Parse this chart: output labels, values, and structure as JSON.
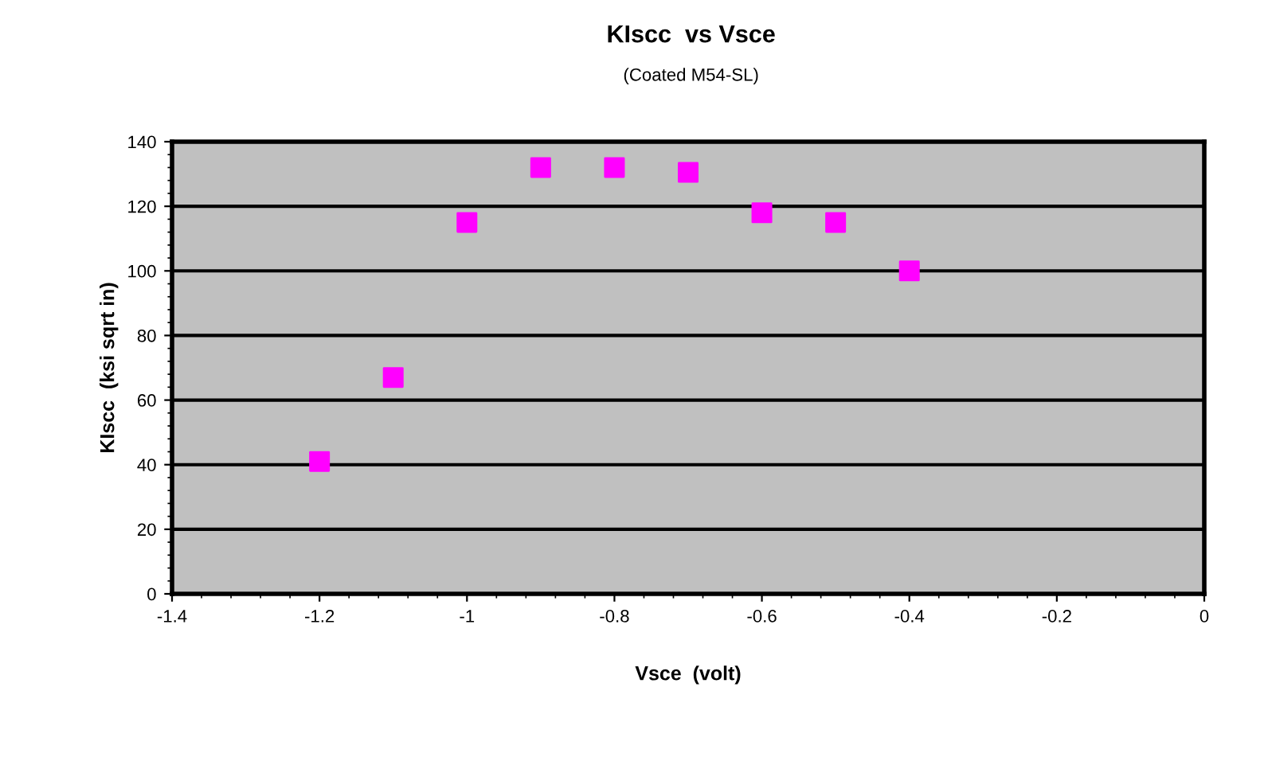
{
  "chart_data": {
    "type": "scatter",
    "title": "KIscc  vs Vsce",
    "subtitle": "(Coated M54-SL)",
    "xlabel": "Vsce  (volt)",
    "ylabel": "KIscc  (ksi sqrt in)",
    "x": [
      -1.2,
      -1.1,
      -1.0,
      -0.9,
      -0.8,
      -0.7,
      -0.6,
      -0.5,
      -0.4
    ],
    "series": [
      {
        "color": "#ff00ff",
        "values": [
          41,
          67,
          115,
          132,
          132,
          130.5,
          118,
          115,
          100
        ]
      }
    ],
    "xlim": [
      -1.4,
      0
    ],
    "xticks": [
      -1.4,
      -1.2,
      -1,
      -0.8,
      -0.6,
      -0.4,
      -0.2,
      0
    ],
    "ylim": [
      0,
      140
    ],
    "yticks": [
      0,
      20,
      40,
      60,
      80,
      100,
      120,
      140
    ],
    "grid": "y",
    "marker": "square",
    "legend": false
  }
}
